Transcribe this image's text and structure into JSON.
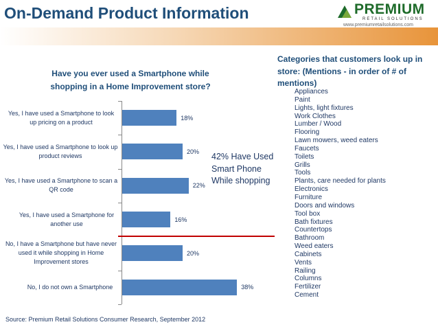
{
  "header": {
    "title": "On-Demand Product Information",
    "logo": {
      "name": "PREMIUM",
      "subtitle": "RETAIL SOLUTIONS",
      "url": "www.premiumretailsolutions.com"
    }
  },
  "colors": {
    "title": "#1f4e79",
    "bar": "#4f81bd",
    "divider": "#c00000",
    "band_end": "#e8943a",
    "logo": "#1e6b2a"
  },
  "chart_data": {
    "type": "bar",
    "orientation": "horizontal",
    "title": "Have you ever used a Smartphone while shopping in a Home Improvement store?",
    "categories": [
      "Yes, I have used a Smartphone to look up pricing on a product",
      "Yes, I have used a Smartphone to look up product reviews",
      "Yes, I have used a Smartphone to scan a QR code",
      "Yes, I have used a Smartphone for another use",
      "No, I have a Smartphone but have never used it while shopping in Home Improvement stores",
      "No, I do not own a Smartphone"
    ],
    "values": [
      18,
      20,
      22,
      16,
      20,
      38
    ],
    "value_labels": [
      "18%",
      "20%",
      "22%",
      "16%",
      "20%",
      "38%"
    ],
    "unit": "%",
    "grid": false,
    "annotation": "42% Have Used Smart Phone While shopping"
  },
  "source": "Source: Premium Retail Solutions Consumer Research, September 2012",
  "categories_panel": {
    "title": "Categories that customers look up in store:  (Mentions - in order of # of mentions)",
    "items": [
      "Appliances",
      "Paint",
      "Lights, light fixtures",
      "Work Clothes",
      "Lumber / Wood",
      "Flooring",
      "Lawn mowers, weed eaters",
      "Faucets",
      "Toilets",
      "Grills",
      "Tools",
      "Plants, care needed for plants",
      "Electronics",
      "Furniture",
      "Doors and windows",
      "Tool box",
      "Bath fixtures",
      "Countertops",
      "Bathroom",
      "Weed eaters",
      "Cabinets",
      "Vents",
      "Railing",
      "Columns",
      "Fertilizer",
      "Cement"
    ]
  }
}
